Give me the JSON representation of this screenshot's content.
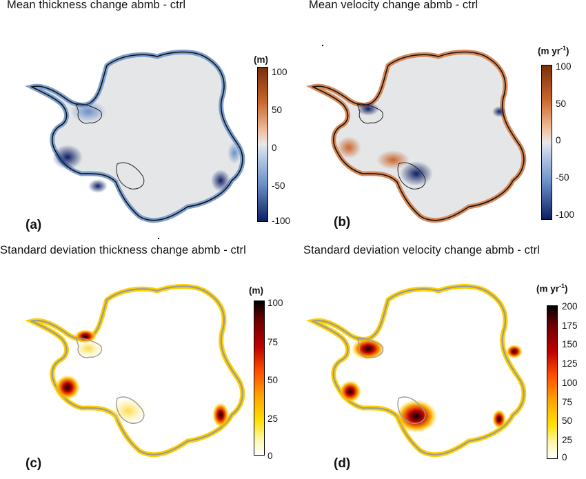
{
  "panels": [
    {
      "title": "Mean thickness change abmb - ctrl",
      "label": "(a)",
      "unit": "(m)",
      "ticks": [
        "100",
        "50",
        "0",
        "-50",
        "-100"
      ],
      "colormap": "blue-white-brown diverging"
    },
    {
      "title": "Mean velocity change abmb - ctrl",
      "label": "(b)",
      "unit_main": "(m yr",
      "unit_sup": "-1",
      "unit_end": ")",
      "ticks": [
        "100",
        "50",
        "0",
        "-50",
        "-100"
      ],
      "colormap": "blue-white-brown diverging"
    },
    {
      "title": "Standard deviation thickness change abmb - ctrl",
      "label": "(c)",
      "unit": "(m)",
      "ticks": [
        "100",
        "75",
        "50",
        "25",
        "0"
      ],
      "colormap": "white-yellow-red-black heat"
    },
    {
      "title": "Standard deviation velocity change abmb - ctrl",
      "label": "(d)",
      "unit_main": "(m yr",
      "unit_sup": "-1",
      "unit_end": ")",
      "ticks": [
        "200",
        "175",
        "150",
        "125",
        "100",
        "75",
        "50",
        "25",
        "0"
      ],
      "colormap": "white-yellow-red-black heat"
    }
  ],
  "colors": {
    "ice_interior": "#e4e6e8",
    "coast_outline": "#111111",
    "grey_outline": "#9a9a9a"
  }
}
